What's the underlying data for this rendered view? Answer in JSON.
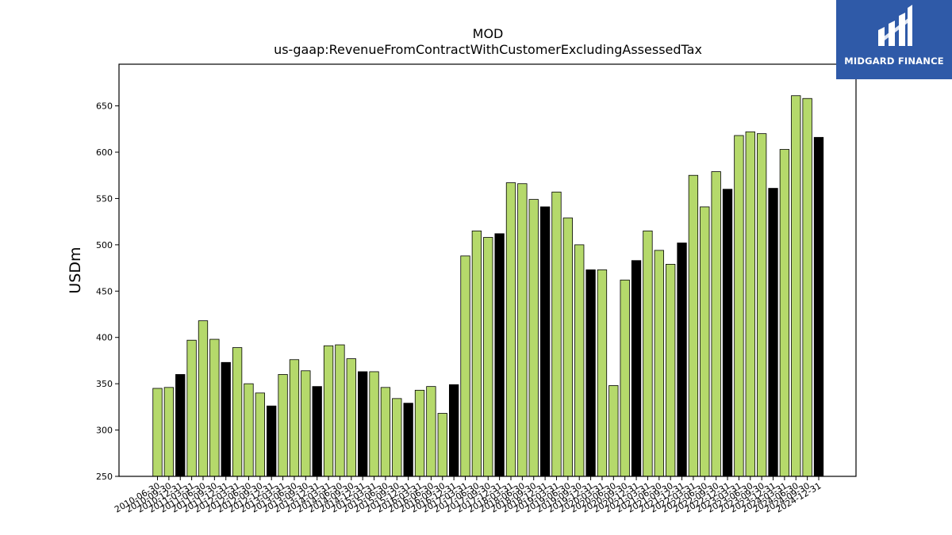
{
  "chart_data": {
    "type": "bar",
    "title": "MOD",
    "subtitle": "us-gaap:RevenueFromContractWithCustomerExcludingAssessedTax",
    "xlabel": "",
    "ylabel": "USDm",
    "ylim": [
      250,
      695
    ],
    "yticks": [
      250,
      300,
      350,
      400,
      450,
      500,
      550,
      600,
      650
    ],
    "grid": false,
    "colors": {
      "quarter": "#b5d96b",
      "fiscal_year_end": "#000000",
      "edge": "#000000"
    },
    "categories": [
      "2010-06-30",
      "2010-09-30",
      "2010-12-31",
      "2011-03-31",
      "2011-06-30",
      "2011-09-30",
      "2011-12-31",
      "2012-03-31",
      "2012-06-30",
      "2012-09-30",
      "2012-12-31",
      "2013-03-31",
      "2013-06-30",
      "2013-09-30",
      "2013-12-31",
      "2014-03-31",
      "2014-06-30",
      "2014-09-30",
      "2014-12-31",
      "2015-03-31",
      "2015-06-30",
      "2015-09-30",
      "2015-12-31",
      "2016-03-31",
      "2016-06-30",
      "2016-09-30",
      "2016-12-31",
      "2017-03-31",
      "2017-06-30",
      "2017-09-30",
      "2017-12-31",
      "2018-03-31",
      "2018-06-30",
      "2018-09-30",
      "2018-12-31",
      "2019-03-31",
      "2019-06-30",
      "2019-09-30",
      "2019-12-31",
      "2020-03-31",
      "2020-06-30",
      "2020-09-30",
      "2020-12-31",
      "2021-03-31",
      "2021-06-30",
      "2021-09-30",
      "2021-12-31",
      "2022-03-31",
      "2022-06-30",
      "2022-09-30",
      "2022-12-31",
      "2023-03-31",
      "2023-06-30",
      "2023-09-30",
      "2023-12-31",
      "2024-03-31",
      "2024-06-30",
      "2024-09-30",
      "2024-12-31"
    ],
    "values": [
      345,
      346,
      360,
      397,
      418,
      398,
      373,
      389,
      350,
      340,
      326,
      360,
      376,
      364,
      347,
      391,
      392,
      377,
      363,
      363,
      346,
      334,
      329,
      343,
      347,
      318,
      349,
      488,
      515,
      508,
      512,
      567,
      566,
      549,
      541,
      557,
      529,
      500,
      473,
      473,
      348,
      462,
      483,
      515,
      494,
      479,
      502,
      575,
      541,
      579,
      560,
      618,
      622,
      620,
      561,
      603,
      661,
      658,
      616
    ],
    "highlight": [
      false,
      false,
      true,
      false,
      false,
      false,
      true,
      false,
      false,
      false,
      true,
      false,
      false,
      false,
      true,
      false,
      false,
      false,
      true,
      false,
      false,
      false,
      true,
      false,
      false,
      false,
      true,
      false,
      false,
      false,
      true,
      false,
      false,
      false,
      true,
      false,
      false,
      false,
      true,
      false,
      false,
      false,
      true,
      false,
      false,
      false,
      true,
      false,
      false,
      false,
      true,
      false,
      false,
      false,
      true,
      false,
      false,
      false,
      true
    ]
  },
  "logo": {
    "name": "MIDGARD FINANCE"
  }
}
